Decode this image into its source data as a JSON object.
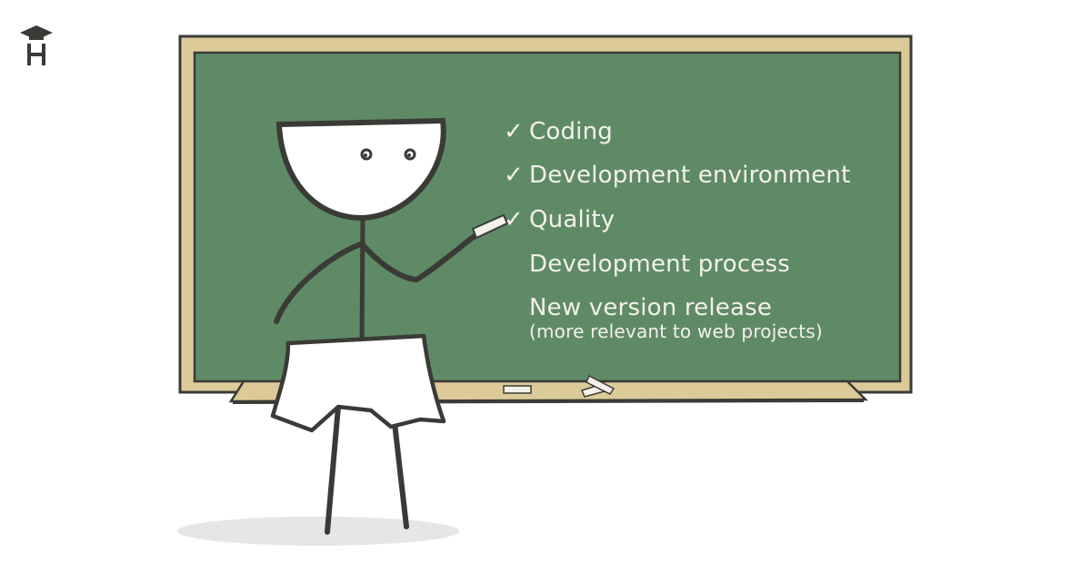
{
  "chalkboard": {
    "items": [
      {
        "label": "Coding",
        "checked": true
      },
      {
        "label": "Development environment",
        "checked": true
      },
      {
        "label": "Quality",
        "checked": true
      },
      {
        "label": "Development process",
        "checked": false
      },
      {
        "label": "New version release",
        "note": "(more relevant to web projects)",
        "checked": false
      }
    ],
    "check_glyph": "✓"
  },
  "colors": {
    "board": "#5f8a66",
    "frame": "#dccb99",
    "outline": "#3a3a36",
    "chalk": "#f3f1ea",
    "shadow": "#e6e6e6"
  }
}
